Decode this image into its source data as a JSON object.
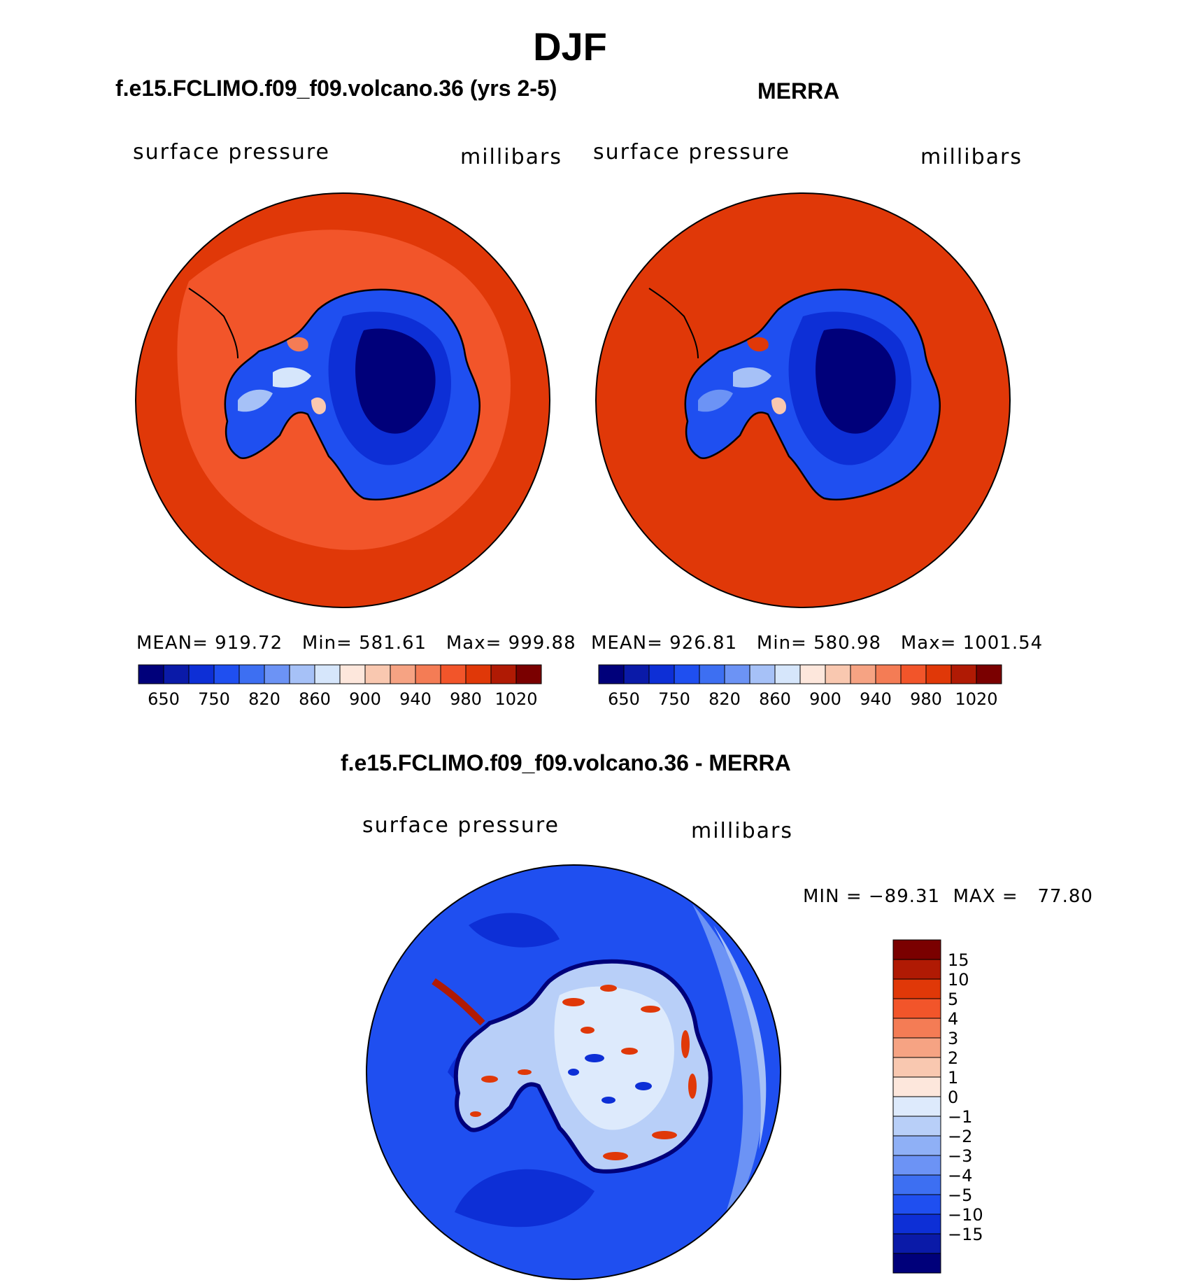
{
  "season": "DJF",
  "panels": {
    "model": {
      "title": "f.e15.FCLIMO.f09_f09.volcano.36 (yrs 2-5)",
      "variable": "surface pressure",
      "units": "millibars",
      "stats": "MEAN= 919.72   Min= 581.61   Max= 999.88"
    },
    "obs": {
      "title": "MERRA",
      "variable": "surface pressure",
      "units": "millibars",
      "stats": "MEAN= 926.81   Min= 580.98   Max= 1001.54"
    },
    "diff": {
      "title": "f.e15.FCLIMO.f09_f09.volcano.36 - MERRA",
      "variable": "surface pressure",
      "units": "millibars",
      "stats": "MIN = −89.31  MAX =   77.80"
    }
  },
  "colorbar_abs": {
    "colors": [
      "#00007a",
      "#0a1aa8",
      "#0d2fd6",
      "#1f4ff0",
      "#3d6ff2",
      "#6c93f5",
      "#a6c1f7",
      "#d6e6fb",
      "#fde7dc",
      "#f9c8b0",
      "#f6a383",
      "#f47c55",
      "#f2552a",
      "#e03808",
      "#b01a04",
      "#7a0000"
    ],
    "ticks": [
      "650",
      "750",
      "820",
      "860",
      "900",
      "940",
      "980",
      "1020"
    ]
  },
  "colorbar_diff": {
    "colors": [
      "#00007a",
      "#0a1aa8",
      "#0d2fd6",
      "#1f4ff0",
      "#3d6ff2",
      "#6c93f5",
      "#8fb0f6",
      "#b8cff8",
      "#ddeafc",
      "#fde7dc",
      "#f9c8b0",
      "#f6a383",
      "#f47c55",
      "#f2552a",
      "#e03808",
      "#b01a04",
      "#7a0000"
    ],
    "ticks": [
      "15",
      "10",
      "5",
      "4",
      "3",
      "2",
      "1",
      "0",
      "−1",
      "−2",
      "−3",
      "−4",
      "−5",
      "−10",
      "−15"
    ]
  }
}
